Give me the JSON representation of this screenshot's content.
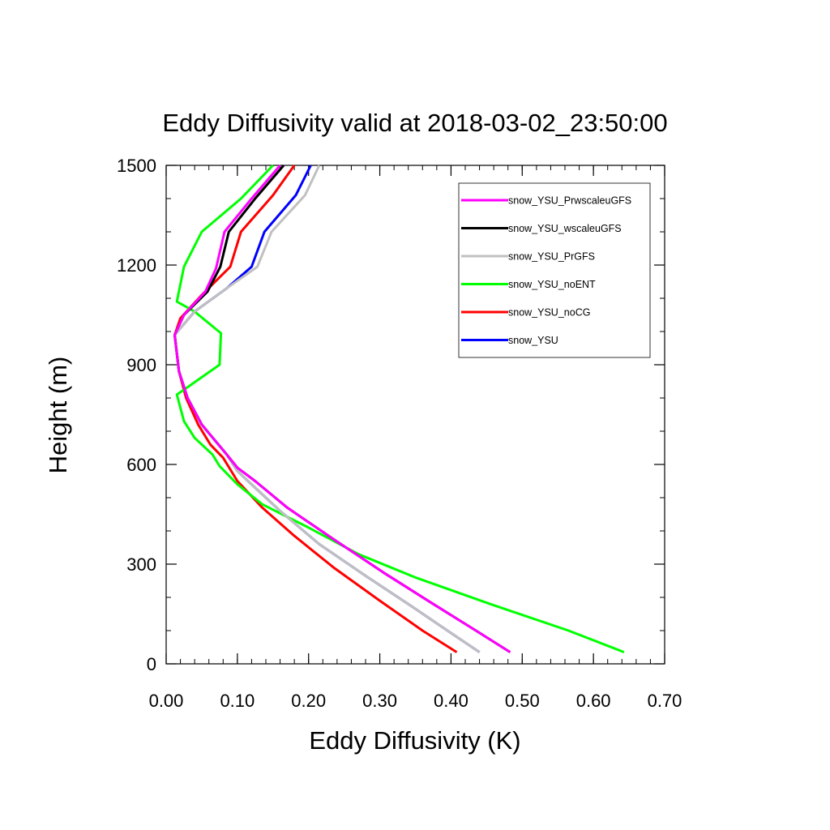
{
  "chart_data": {
    "type": "line",
    "title": "Eddy Diffusivity valid at 2018-03-02_23:50:00",
    "xlabel": "Eddy Diffusivity (K)",
    "ylabel": "Height (m)",
    "xlim": [
      0.0,
      0.7
    ],
    "ylim": [
      0,
      1500
    ],
    "x_ticks": [
      0.0,
      0.1,
      0.2,
      0.3,
      0.4,
      0.5,
      0.6,
      0.7
    ],
    "x_tick_labels": [
      "0.00",
      "0.10",
      "0.20",
      "0.30",
      "0.40",
      "0.50",
      "0.60",
      "0.70"
    ],
    "x_minor_step": 0.02,
    "y_ticks": [
      0,
      300,
      600,
      900,
      1200,
      1500
    ],
    "y_tick_labels": [
      "0",
      "300",
      "600",
      "900",
      "1200",
      "1500"
    ],
    "y_minor_step": 100,
    "grid": false,
    "legend_position": "top-right",
    "series": [
      {
        "name": "snow_YSU_PrwscaleuGFS",
        "color": "#ff00ff",
        "points": [
          [
            0.483,
            35
          ],
          [
            0.435,
            100
          ],
          [
            0.375,
            180
          ],
          [
            0.305,
            275
          ],
          [
            0.235,
            375
          ],
          [
            0.17,
            470
          ],
          [
            0.125,
            550
          ],
          [
            0.1,
            590
          ],
          [
            0.085,
            630
          ],
          [
            0.05,
            720
          ],
          [
            0.03,
            800
          ],
          [
            0.018,
            880
          ],
          [
            0.012,
            990
          ],
          [
            0.025,
            1050
          ],
          [
            0.055,
            1120
          ],
          [
            0.07,
            1190
          ],
          [
            0.082,
            1300
          ],
          [
            0.12,
            1400
          ],
          [
            0.16,
            1500
          ]
        ]
      },
      {
        "name": "snow_YSU_wscaleuGFS",
        "color": "#000000",
        "points": [
          [
            0.483,
            35
          ],
          [
            0.435,
            100
          ],
          [
            0.375,
            180
          ],
          [
            0.305,
            275
          ],
          [
            0.235,
            375
          ],
          [
            0.17,
            470
          ],
          [
            0.125,
            550
          ],
          [
            0.1,
            590
          ],
          [
            0.085,
            630
          ],
          [
            0.05,
            720
          ],
          [
            0.03,
            800
          ],
          [
            0.018,
            880
          ],
          [
            0.012,
            990
          ],
          [
            0.025,
            1050
          ],
          [
            0.058,
            1120
          ],
          [
            0.076,
            1195
          ],
          [
            0.088,
            1300
          ],
          [
            0.125,
            1400
          ],
          [
            0.165,
            1500
          ]
        ]
      },
      {
        "name": "snow_YSU_PrGFS",
        "color": "#c0c0c0",
        "points": [
          [
            0.44,
            35
          ],
          [
            0.395,
            100
          ],
          [
            0.34,
            180
          ],
          [
            0.28,
            265
          ],
          [
            0.215,
            360
          ],
          [
            0.16,
            460
          ],
          [
            0.12,
            540
          ],
          [
            0.1,
            580
          ],
          [
            0.085,
            630
          ],
          [
            0.05,
            720
          ],
          [
            0.03,
            800
          ],
          [
            0.018,
            880
          ],
          [
            0.012,
            990
          ],
          [
            0.04,
            1060
          ],
          [
            0.085,
            1130
          ],
          [
            0.128,
            1195
          ],
          [
            0.148,
            1300
          ],
          [
            0.195,
            1410
          ],
          [
            0.215,
            1500
          ]
        ]
      },
      {
        "name": "snow_YSU_noENT",
        "color": "#00ff00",
        "points": [
          [
            0.643,
            35
          ],
          [
            0.565,
            100
          ],
          [
            0.455,
            180
          ],
          [
            0.35,
            260
          ],
          [
            0.27,
            330
          ],
          [
            0.2,
            410
          ],
          [
            0.135,
            480
          ],
          [
            0.1,
            540
          ],
          [
            0.075,
            595
          ],
          [
            0.065,
            630
          ],
          [
            0.04,
            680
          ],
          [
            0.025,
            730
          ],
          [
            0.015,
            810
          ],
          [
            0.035,
            840
          ],
          [
            0.075,
            900
          ],
          [
            0.077,
            995
          ],
          [
            0.04,
            1060
          ],
          [
            0.015,
            1090
          ],
          [
            0.025,
            1195
          ],
          [
            0.05,
            1300
          ],
          [
            0.105,
            1400
          ],
          [
            0.15,
            1500
          ]
        ]
      },
      {
        "name": "snow_YSU_noCG",
        "color": "#ff0000",
        "points": [
          [
            0.408,
            35
          ],
          [
            0.36,
            100
          ],
          [
            0.3,
            190
          ],
          [
            0.235,
            290
          ],
          [
            0.18,
            385
          ],
          [
            0.135,
            470
          ],
          [
            0.1,
            550
          ],
          [
            0.08,
            620
          ],
          [
            0.062,
            660
          ],
          [
            0.045,
            720
          ],
          [
            0.028,
            800
          ],
          [
            0.018,
            880
          ],
          [
            0.012,
            990
          ],
          [
            0.02,
            1040
          ],
          [
            0.05,
            1110
          ],
          [
            0.09,
            1195
          ],
          [
            0.105,
            1300
          ],
          [
            0.15,
            1410
          ],
          [
            0.18,
            1500
          ]
        ]
      },
      {
        "name": "snow_YSU",
        "color": "#0000ff",
        "points": [
          [
            0.44,
            35
          ],
          [
            0.395,
            100
          ],
          [
            0.34,
            180
          ],
          [
            0.28,
            265
          ],
          [
            0.215,
            360
          ],
          [
            0.16,
            460
          ],
          [
            0.12,
            540
          ],
          [
            0.1,
            580
          ],
          [
            0.085,
            630
          ],
          [
            0.05,
            720
          ],
          [
            0.03,
            800
          ],
          [
            0.018,
            880
          ],
          [
            0.012,
            990
          ],
          [
            0.04,
            1060
          ],
          [
            0.085,
            1130
          ],
          [
            0.12,
            1195
          ],
          [
            0.138,
            1300
          ],
          [
            0.182,
            1410
          ],
          [
            0.203,
            1500
          ]
        ]
      }
    ]
  },
  "style": {
    "line_width": 3,
    "axis_color": "#000000",
    "background": "#ffffff"
  }
}
